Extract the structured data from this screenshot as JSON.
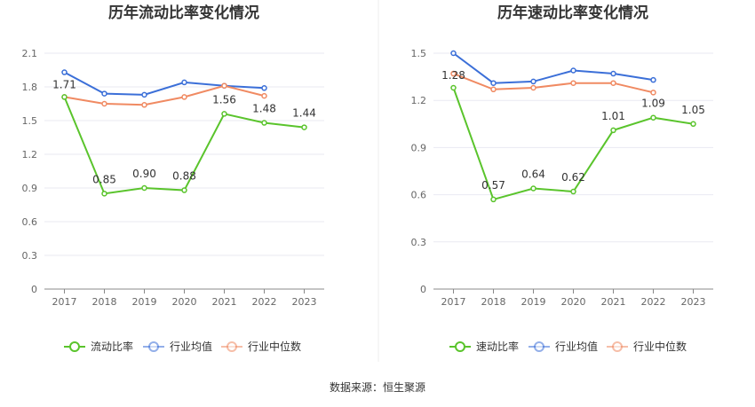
{
  "colors": {
    "primary": "#5ac42c",
    "avg": "#3b6fd8",
    "median": "#f08a62",
    "grid": "#e9e9f2",
    "axis": "#888888"
  },
  "source": "数据来源：恒生聚源",
  "chart_data": [
    {
      "type": "line",
      "title": "历年流动比率变化情况",
      "categories": [
        "2017",
        "2018",
        "2019",
        "2020",
        "2021",
        "2022",
        "2023"
      ],
      "ylim": [
        0,
        2.1
      ],
      "yticks": [
        "0",
        "0.3",
        "0.6",
        "0.9",
        "1.2",
        "1.5",
        "1.8",
        "2.1"
      ],
      "series": [
        {
          "name": "流动比率",
          "color": "#5ac42c",
          "values": [
            1.71,
            0.85,
            0.9,
            0.88,
            1.56,
            1.48,
            1.44
          ],
          "labels": [
            "1.71",
            "0.85",
            "0.90",
            "0.88",
            "1.56",
            "1.48",
            "1.44"
          ]
        },
        {
          "name": "行业均值",
          "color": "#3b6fd8",
          "values": [
            1.93,
            1.74,
            1.73,
            1.84,
            1.81,
            1.79,
            null
          ]
        },
        {
          "name": "行业中位数",
          "color": "#f08a62",
          "values": [
            1.71,
            1.65,
            1.64,
            1.71,
            1.81,
            1.72,
            null
          ]
        }
      ]
    },
    {
      "type": "line",
      "title": "历年速动比率变化情况",
      "categories": [
        "2017",
        "2018",
        "2019",
        "2020",
        "2021",
        "2022",
        "2023"
      ],
      "ylim": [
        0,
        1.5
      ],
      "yticks": [
        "0",
        "0.3",
        "0.6",
        "0.9",
        "1.2",
        "1.5"
      ],
      "series": [
        {
          "name": "速动比率",
          "color": "#5ac42c",
          "values": [
            1.28,
            0.57,
            0.64,
            0.62,
            1.01,
            1.09,
            1.05
          ],
          "labels": [
            "1.28",
            "0.57",
            "0.64",
            "0.62",
            "1.01",
            "1.09",
            "1.05"
          ]
        },
        {
          "name": "行业均值",
          "color": "#3b6fd8",
          "values": [
            1.5,
            1.31,
            1.32,
            1.39,
            1.37,
            1.33,
            null
          ]
        },
        {
          "name": "行业中位数",
          "color": "#f08a62",
          "values": [
            1.37,
            1.27,
            1.28,
            1.31,
            1.31,
            1.25,
            null
          ]
        }
      ]
    }
  ]
}
